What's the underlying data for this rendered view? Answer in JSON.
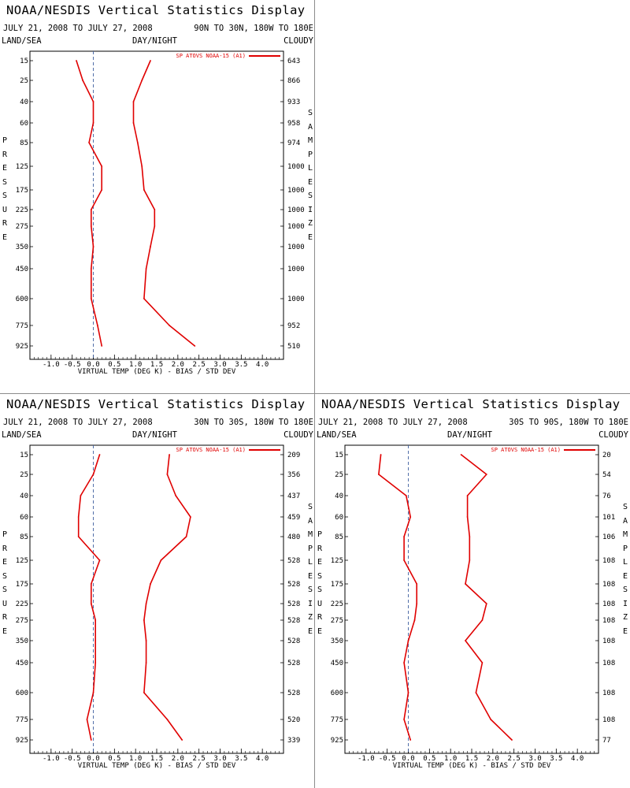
{
  "colors": {
    "line": "#e00000",
    "axis": "#000000",
    "divider": "#8c8c8c",
    "zero_line": "#4060a0"
  },
  "common": {
    "title": "NOAA/NESDIS Vertical Statistics Display",
    "date_range": "JULY 21, 2008 TO JULY 27, 2008",
    "land_sea": "LAND/SEA",
    "day_night": "DAY/NIGHT",
    "cloudy": "CLOUDY",
    "pressure_label": "PRESSURE",
    "sample_size_label": "SAMPLE SIZE",
    "xlabel": "VIRTUAL TEMP (DEG K) - BIAS / STD DEV",
    "legend": "SP ATOVS NOAA-15 (A1)",
    "x_ticks": [
      "-1.0",
      "-0.5",
      "0.0",
      "0.5",
      "1.0",
      "1.5",
      "2.0",
      "2.5",
      "3.0",
      "3.5",
      "4.0"
    ],
    "pressure_levels": [
      "15",
      "25",
      "40",
      "60",
      "85",
      "125",
      "175",
      "225",
      "275",
      "350",
      "450",
      "600",
      "775",
      "925"
    ]
  },
  "chart_data": [
    {
      "type": "line",
      "region": "90N TO 30N, 180W TO 180E",
      "xlim": [
        -1.5,
        4.5
      ],
      "sample_sizes": [
        "643",
        "866",
        "933",
        "958",
        "974",
        "1000",
        "1000",
        "1000",
        "1000",
        "1000",
        "1000",
        "1000",
        "952",
        "510"
      ],
      "series": [
        {
          "values": [
            -0.4,
            -0.25,
            0.0,
            0.0,
            -0.1,
            0.2,
            0.2,
            -0.05,
            -0.05,
            0.0,
            -0.05,
            -0.05,
            0.1,
            0.2
          ]
        },
        {
          "values": [
            1.35,
            1.15,
            0.95,
            0.95,
            1.05,
            1.15,
            1.2,
            1.45,
            1.45,
            1.35,
            1.25,
            1.2,
            1.8,
            2.4
          ]
        }
      ]
    },
    {
      "type": "line",
      "region": "30N TO 30S, 180W TO 180E",
      "xlim": [
        -1.5,
        4.5
      ],
      "sample_sizes": [
        "209",
        "356",
        "437",
        "459",
        "480",
        "528",
        "528",
        "528",
        "528",
        "528",
        "528",
        "528",
        "520",
        "339"
      ],
      "series": [
        {
          "values": [
            0.15,
            0.0,
            -0.3,
            -0.35,
            -0.35,
            0.15,
            -0.05,
            -0.05,
            0.05,
            0.05,
            0.05,
            0.0,
            -0.15,
            -0.05
          ]
        },
        {
          "values": [
            1.8,
            1.75,
            1.95,
            2.3,
            2.2,
            1.6,
            1.35,
            1.25,
            1.2,
            1.25,
            1.25,
            1.2,
            1.75,
            2.1
          ]
        }
      ]
    },
    {
      "type": "line",
      "region": "30S TO 90S, 180W TO 180E",
      "xlim": [
        -1.5,
        4.5
      ],
      "sample_sizes": [
        "20",
        "54",
        "76",
        "101",
        "106",
        "108",
        "108",
        "108",
        "108",
        "108",
        "108",
        "108",
        "108",
        "77"
      ],
      "series": [
        {
          "values": [
            -0.65,
            -0.7,
            -0.05,
            0.05,
            -0.1,
            -0.1,
            0.2,
            0.2,
            0.15,
            0.0,
            -0.1,
            0.0,
            -0.1,
            0.05
          ]
        },
        {
          "values": [
            1.25,
            1.85,
            1.4,
            1.4,
            1.45,
            1.45,
            1.35,
            1.85,
            1.75,
            1.35,
            1.75,
            1.6,
            1.95,
            2.45
          ]
        }
      ]
    }
  ]
}
